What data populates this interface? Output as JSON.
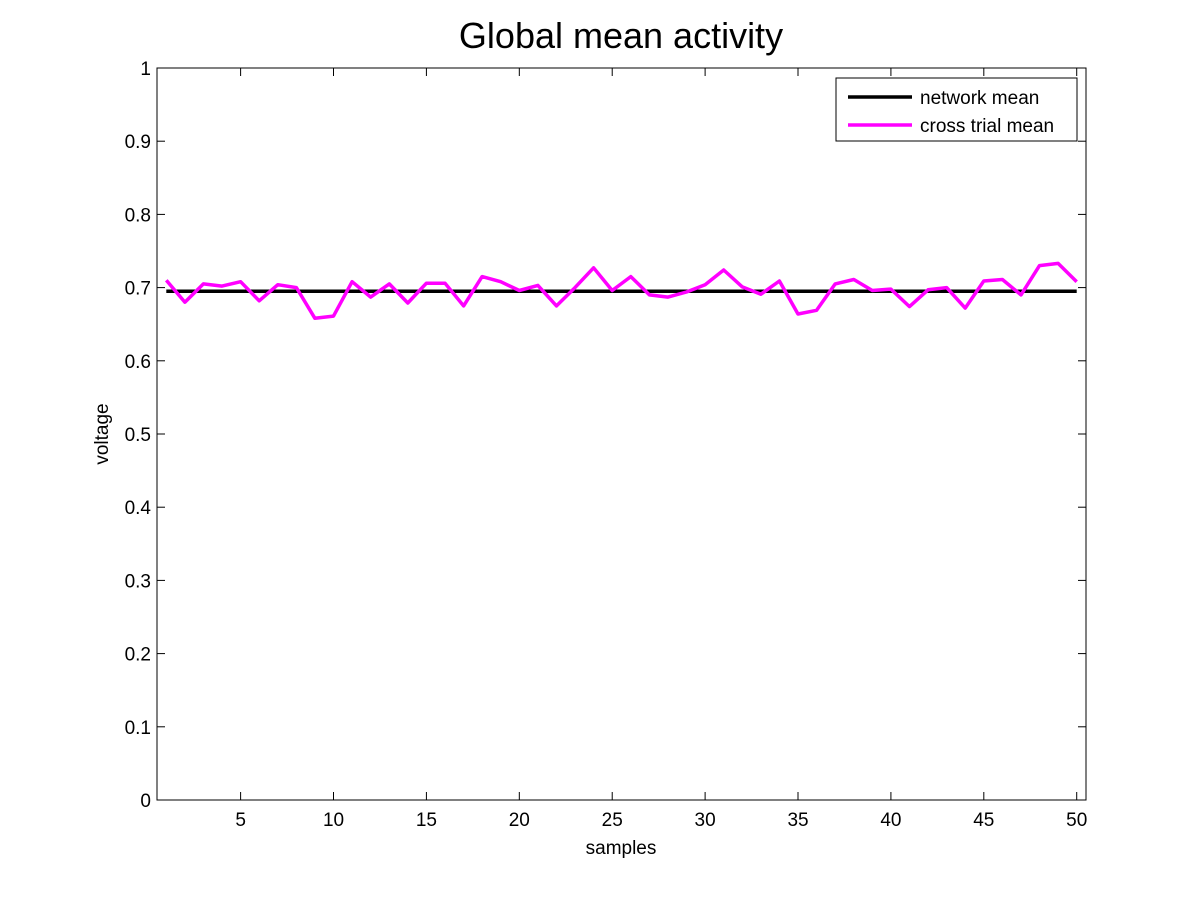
{
  "chart_data": {
    "type": "line",
    "title": "Global mean activity",
    "xlabel": "samples",
    "ylabel": "voltage",
    "xlim": [
      0.5,
      50.5
    ],
    "ylim": [
      0,
      1
    ],
    "xticks": [
      5,
      10,
      15,
      20,
      25,
      30,
      35,
      40,
      45,
      50
    ],
    "yticks": [
      0,
      0.1,
      0.2,
      0.3,
      0.4,
      0.5,
      0.6,
      0.7,
      0.8,
      0.9,
      1
    ],
    "ytick_labels": [
      "0",
      "0.1",
      "0.2",
      "0.3",
      "0.4",
      "0.5",
      "0.6",
      "0.7",
      "0.8",
      "0.9",
      "1"
    ],
    "grid": false,
    "legend_position": "top-right",
    "x": [
      1,
      2,
      3,
      4,
      5,
      6,
      7,
      8,
      9,
      10,
      11,
      12,
      13,
      14,
      15,
      16,
      17,
      18,
      19,
      20,
      21,
      22,
      23,
      24,
      25,
      26,
      27,
      28,
      29,
      30,
      31,
      32,
      33,
      34,
      35,
      36,
      37,
      38,
      39,
      40,
      41,
      42,
      43,
      44,
      45,
      46,
      47,
      48,
      49,
      50
    ],
    "series": [
      {
        "name": "network mean",
        "color": "#000000",
        "values": [
          0.695,
          0.695,
          0.695,
          0.695,
          0.695,
          0.695,
          0.695,
          0.695,
          0.695,
          0.695,
          0.695,
          0.695,
          0.695,
          0.695,
          0.695,
          0.695,
          0.695,
          0.695,
          0.695,
          0.695,
          0.695,
          0.695,
          0.695,
          0.695,
          0.695,
          0.695,
          0.695,
          0.695,
          0.695,
          0.695,
          0.695,
          0.695,
          0.695,
          0.695,
          0.695,
          0.695,
          0.695,
          0.695,
          0.695,
          0.695,
          0.695,
          0.695,
          0.695,
          0.695,
          0.695,
          0.695,
          0.695,
          0.695,
          0.695,
          0.695
        ]
      },
      {
        "name": "cross trial mean",
        "color": "#ff00ff",
        "values": [
          0.71,
          0.68,
          0.705,
          0.702,
          0.708,
          0.682,
          0.704,
          0.7,
          0.658,
          0.661,
          0.708,
          0.687,
          0.705,
          0.679,
          0.706,
          0.706,
          0.675,
          0.715,
          0.708,
          0.696,
          0.703,
          0.675,
          0.7,
          0.727,
          0.696,
          0.715,
          0.69,
          0.687,
          0.694,
          0.704,
          0.724,
          0.701,
          0.691,
          0.709,
          0.664,
          0.669,
          0.705,
          0.711,
          0.696,
          0.698,
          0.674,
          0.697,
          0.7,
          0.672,
          0.709,
          0.711,
          0.69,
          0.73,
          0.733,
          0.708
        ]
      }
    ]
  }
}
